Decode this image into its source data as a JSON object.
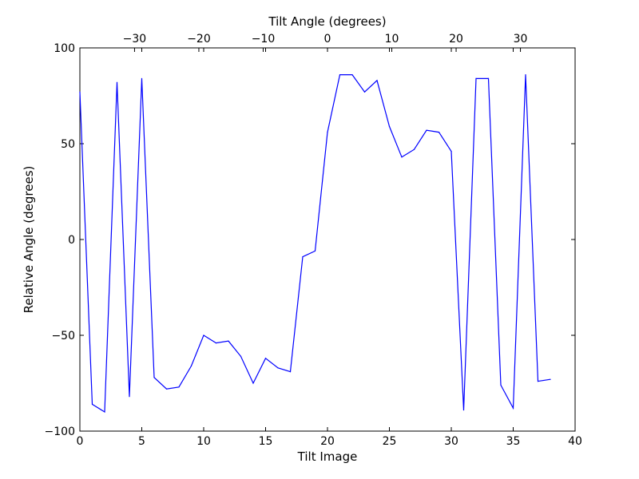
{
  "chart_data": {
    "type": "line",
    "title": "",
    "xlabel": "Tilt Image",
    "ylabel": "Relative Angle (degrees)",
    "top_xlabel": "Tilt Angle (degrees)",
    "xlim": [
      0,
      40
    ],
    "ylim": [
      -100,
      100
    ],
    "top_xlim": [
      -38.5,
      38.5
    ],
    "grid": false,
    "legend": "none",
    "line_color": "#0000ff",
    "x_ticks": [
      0,
      5,
      10,
      15,
      20,
      25,
      30,
      35,
      40
    ],
    "x_tick_labels": [
      "0",
      "5",
      "10",
      "15",
      "20",
      "25",
      "30",
      "35",
      "40"
    ],
    "y_ticks": [
      -100,
      -50,
      0,
      50,
      100
    ],
    "y_tick_labels": [
      "−100",
      "−50",
      "0",
      "50",
      "100"
    ],
    "top_ticks": [
      -30,
      -20,
      -10,
      0,
      10,
      20,
      30
    ],
    "top_tick_labels": [
      "−30",
      "−20",
      "−10",
      "0",
      "10",
      "20",
      "30"
    ],
    "series": [
      {
        "x": [
          0,
          1,
          2,
          3,
          4,
          5,
          6,
          7,
          8,
          9,
          10,
          11,
          12,
          13,
          14,
          15,
          16,
          17,
          18,
          19,
          20,
          21,
          22,
          23,
          24,
          25,
          26,
          27,
          28,
          29,
          30,
          31,
          32,
          33,
          34,
          35,
          36,
          37,
          38
        ],
        "values": [
          77,
          -86,
          -90,
          82,
          -82,
          84,
          -72,
          -78,
          -77,
          -66,
          -50,
          -54,
          -53,
          -61,
          -75,
          -62,
          -67,
          -69,
          -9,
          -6,
          56,
          86,
          86,
          77,
          83,
          59,
          43,
          47,
          57,
          56,
          46,
          -89,
          84,
          84,
          -76,
          -88,
          86,
          -74,
          -73
        ]
      }
    ]
  }
}
